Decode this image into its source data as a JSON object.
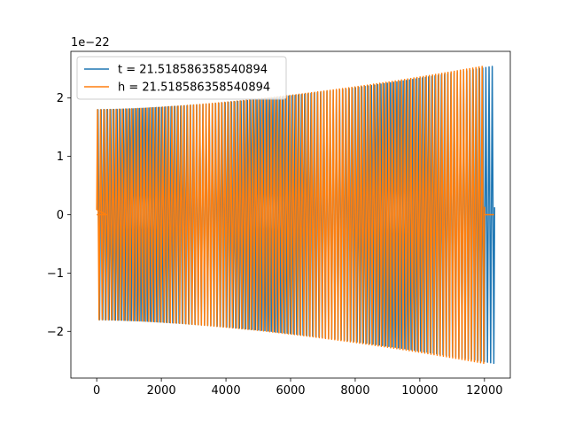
{
  "chart_data": {
    "type": "line",
    "title": "",
    "xlabel": "",
    "ylabel": "",
    "y_offset_label": "1e−22",
    "xlim": [
      -800,
      12800
    ],
    "ylim": [
      -2.8,
      2.8
    ],
    "xticks": [
      0,
      2000,
      4000,
      6000,
      8000,
      10000,
      12000
    ],
    "xtick_labels": [
      "0",
      "2000",
      "4000",
      "6000",
      "8000",
      "10000",
      "12000"
    ],
    "yticks": [
      -2,
      -1,
      0,
      1,
      2
    ],
    "ytick_labels": [
      "−2",
      "−1",
      "0",
      "1",
      "2"
    ],
    "legend_position": "top-left",
    "grid": false,
    "series": [
      {
        "name": "t = 21.518586358540894",
        "color": "#1f77b4",
        "x_start": 0,
        "x_end": 12300,
        "amplitude_start": 1.8,
        "amplitude_end": 2.55,
        "cycles": 125,
        "note_values": "oscillation, envelope grows from ~1.8 to ~2.55 (×1e-22)"
      },
      {
        "name": "h = 21.518586358540894",
        "color": "#ff7f0e",
        "x_start": 0,
        "x_end": 12000,
        "amplitude_start": 1.8,
        "amplitude_end": 2.55,
        "cycles": 125,
        "zero_tail": [
          [
            0,
            300
          ],
          [
            12000,
            12300
          ]
        ]
      }
    ]
  }
}
